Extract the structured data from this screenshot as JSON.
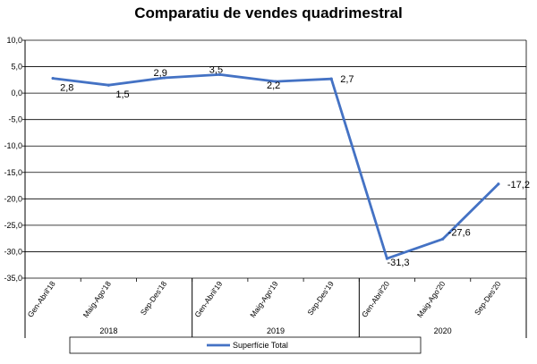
{
  "chart_data": {
    "type": "line",
    "title": "Comparatiu de vendes quadrimestral",
    "categories": [
      "Gen-Abril'18",
      "Maig-Ago'18",
      "Sep-Des'18",
      "Gen-Abril'19",
      "Maig-Ago'19",
      "Sep-Des'19",
      "Gen-Abril'20",
      "Maig-Ago'20",
      "Sep-Des'20"
    ],
    "groups": [
      {
        "label": "2018",
        "categories": 3
      },
      {
        "label": "2019",
        "categories": 3
      },
      {
        "label": "2020",
        "categories": 3
      }
    ],
    "series": [
      {
        "name": "Superfície Total",
        "values": [
          2.8,
          1.5,
          2.9,
          3.5,
          2.2,
          2.7,
          -31.3,
          -27.6,
          -17.2
        ],
        "labels": [
          "2,8",
          "1,5",
          "2,9",
          "3,5",
          "2,2",
          "2,7",
          "-31,3",
          "-27,6",
          "-17,2"
        ],
        "color": "#4472C4"
      }
    ],
    "ylim": [
      -35,
      10
    ],
    "yticks": [
      10,
      5,
      0,
      -5,
      -10,
      -15,
      -20,
      -25,
      -30,
      -35
    ],
    "ytick_labels": [
      "10,0",
      "5,0",
      "0,0",
      "-5,0",
      "-10,0",
      "-15,0",
      "-20,0",
      "-25,0",
      "-30,0",
      "-35,0"
    ],
    "grid": true,
    "legend": "bottom"
  }
}
